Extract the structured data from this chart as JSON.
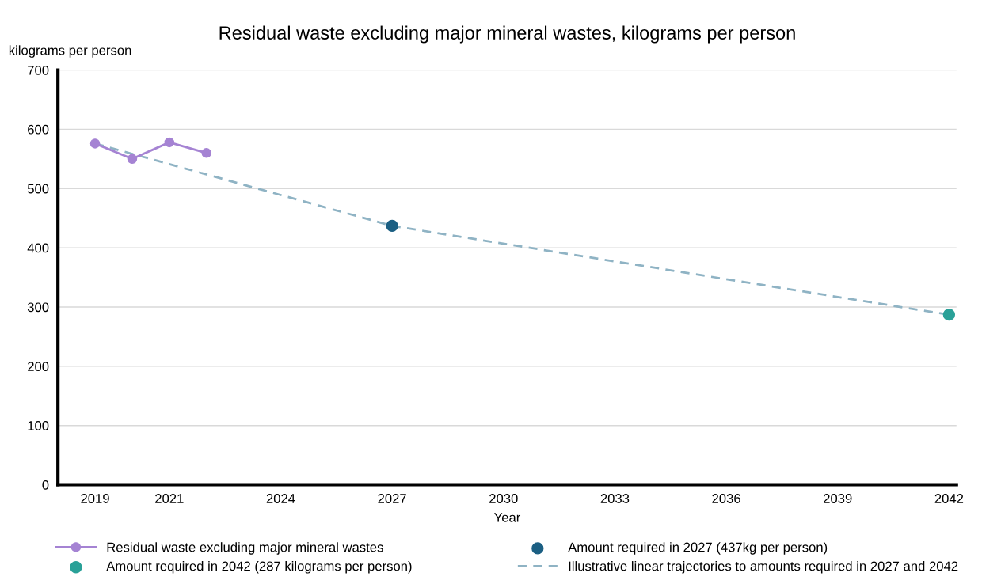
{
  "chart_data": {
    "type": "line",
    "title": "Residual waste excluding major mineral wastes, kilograms per person",
    "xlabel": "Year",
    "ylabel": "kilograms per person",
    "xlim": [
      2018,
      2042.2
    ],
    "ylim": [
      0,
      700
    ],
    "xticks": [
      2019,
      2021,
      2024,
      2027,
      2030,
      2033,
      2036,
      2039,
      2042
    ],
    "yticks": [
      0,
      100,
      200,
      300,
      400,
      500,
      600,
      700
    ],
    "grid": "y",
    "legend": "bottom",
    "series": [
      {
        "name": "Residual waste excluding major mineral wastes",
        "color": "#a583d3",
        "x": [
          2019,
          2020,
          2021,
          2022
        ],
        "values": [
          576,
          550,
          578,
          560
        ],
        "marker": "circle",
        "line_style": "solid"
      },
      {
        "name": "Amount required in 2027 (437kg per person)",
        "type": "scatter",
        "color": "#1b5f83",
        "x": [
          2027
        ],
        "values": [
          437
        ],
        "marker": "circle"
      },
      {
        "name": "Amount required in 2042 (287 kilograms per person)",
        "type": "scatter",
        "color": "#2aa198",
        "x": [
          2042
        ],
        "values": [
          287
        ],
        "marker": "circle"
      },
      {
        "name": "Illustrative linear trajectories to amounts required in 2027 and 2042",
        "color": "#8fb3c4",
        "x": [
          2019,
          2027,
          2042
        ],
        "values": [
          576,
          437,
          287
        ],
        "marker": "none",
        "line_style": "dashed"
      }
    ]
  }
}
